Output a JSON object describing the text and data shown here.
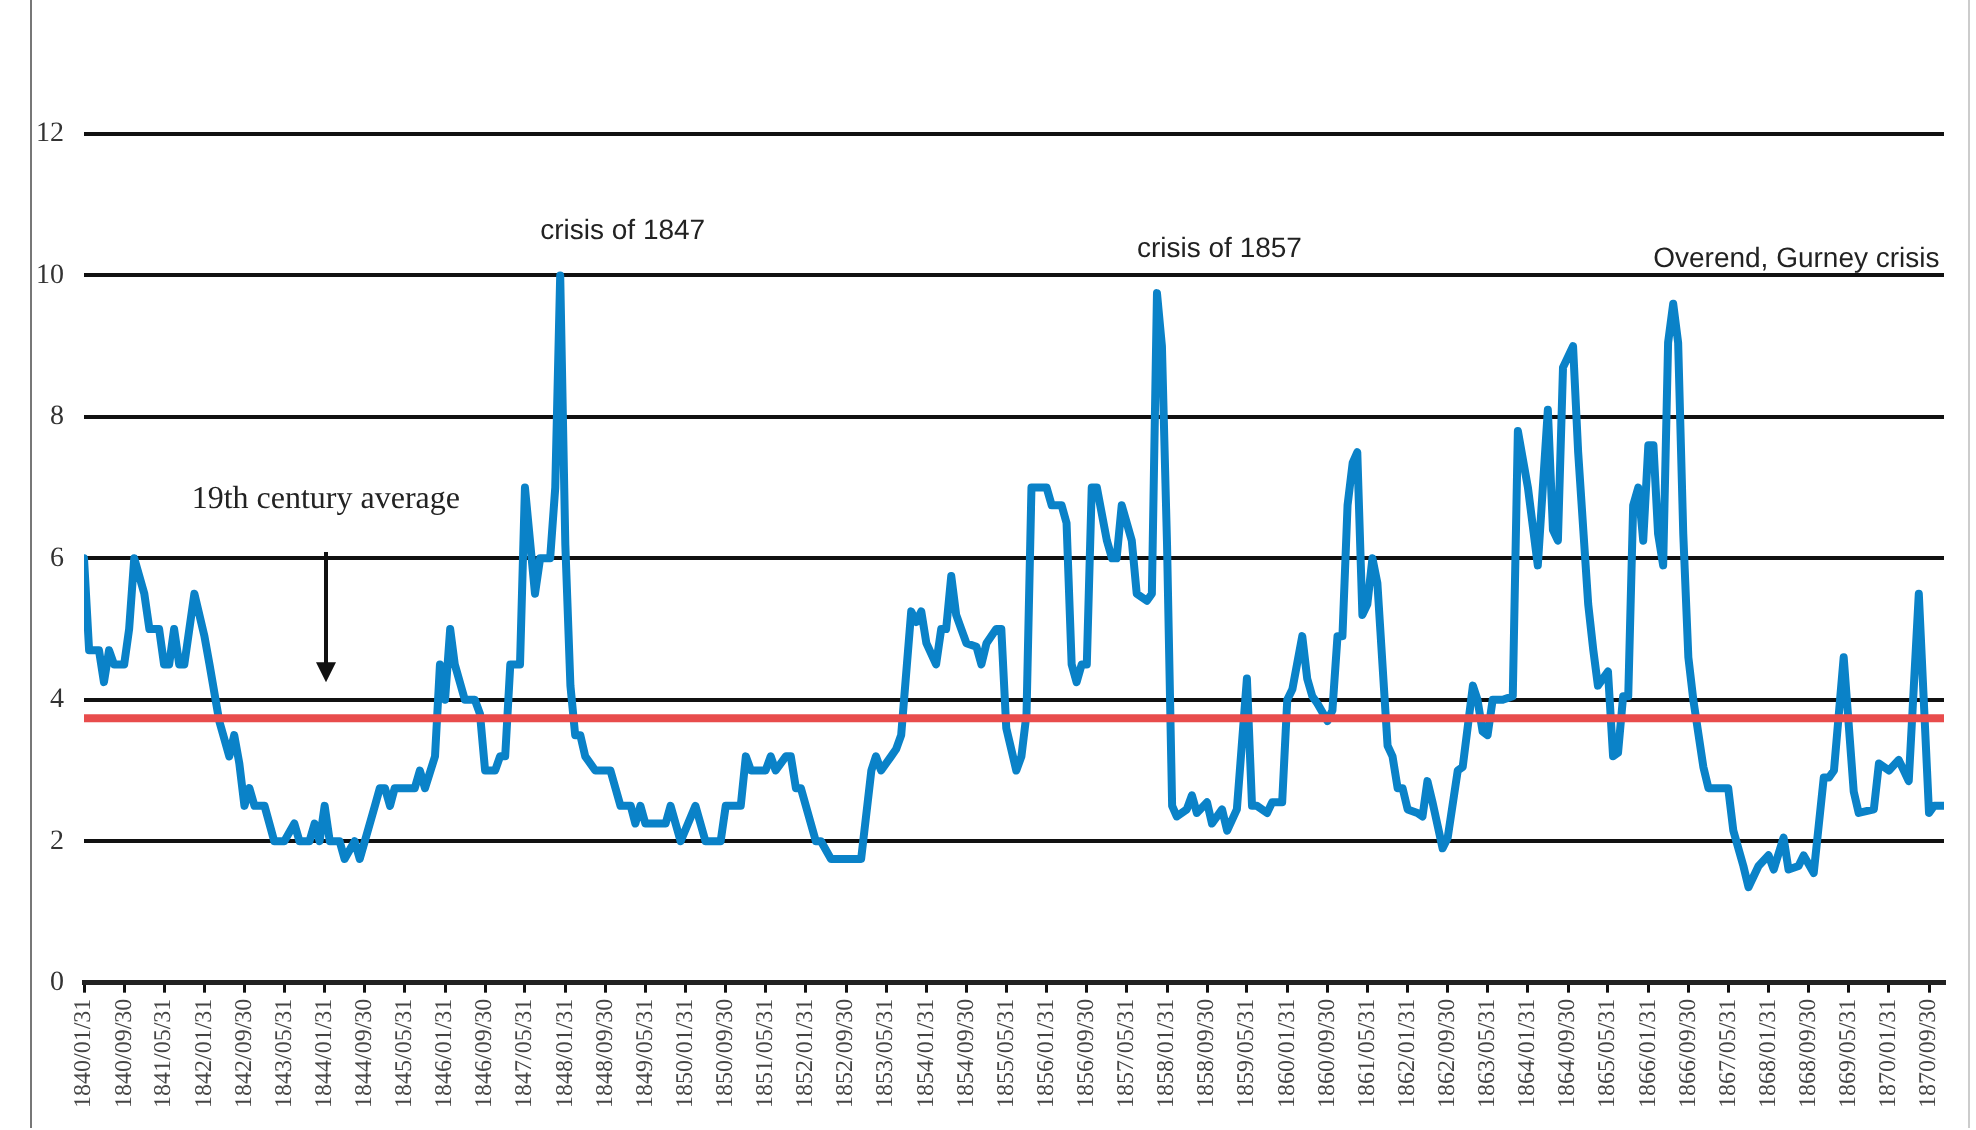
{
  "chart_data": {
    "type": "line",
    "x": [
      "1840-01",
      "1840-02",
      "1840-04",
      "1840-05",
      "1840-06",
      "1840-07",
      "1840-09",
      "1840-10",
      "1840-11",
      "1841-01",
      "1841-02",
      "1841-04",
      "1841-05",
      "1841-06",
      "1841-07",
      "1841-08",
      "1841-09",
      "1841-11",
      "1842-01",
      "1842-02",
      "1842-04",
      "1842-06",
      "1842-07",
      "1842-08",
      "1842-09",
      "1842-10",
      "1842-11",
      "1843-01",
      "1843-03",
      "1843-05",
      "1843-07",
      "1843-08",
      "1843-10",
      "1843-11",
      "1843-12",
      "1844-01",
      "1844-02",
      "1844-04",
      "1844-05",
      "1844-07",
      "1844-08",
      "1844-11",
      "1844-12",
      "1845-01",
      "1845-02",
      "1845-03",
      "1845-07",
      "1845-08",
      "1845-09",
      "1845-11",
      "1845-12",
      "1846-01",
      "1846-02",
      "1846-03",
      "1846-05",
      "1846-07",
      "1846-08",
      "1846-09",
      "1846-11",
      "1846-12",
      "1847-01",
      "1847-02",
      "1847-04",
      "1847-05",
      "1847-07",
      "1847-08",
      "1847-10",
      "1847-11",
      "1847-12",
      "1848-01",
      "1848-02",
      "1848-03",
      "1848-04",
      "1848-05",
      "1848-07",
      "1848-10",
      "1848-12",
      "1849-02",
      "1849-03",
      "1849-04",
      "1849-05",
      "1849-09",
      "1849-10",
      "1849-12",
      "1850-03",
      "1850-05",
      "1850-08",
      "1850-09",
      "1850-12",
      "1851-01",
      "1851-02",
      "1851-05",
      "1851-06",
      "1851-07",
      "1851-09",
      "1851-10",
      "1851-11",
      "1851-12",
      "1852-03",
      "1852-04",
      "1852-06",
      "1852-12",
      "1853-02",
      "1853-03",
      "1853-04",
      "1853-06",
      "1853-07",
      "1853-08",
      "1853-10",
      "1853-11",
      "1853-12",
      "1854-01",
      "1854-03",
      "1854-04",
      "1854-05",
      "1854-06",
      "1854-07",
      "1854-08",
      "1854-09",
      "1854-11",
      "1854-12",
      "1855-01",
      "1855-03",
      "1855-04",
      "1855-05",
      "1855-07",
      "1855-08",
      "1855-09",
      "1855-10",
      "1856-01",
      "1856-02",
      "1856-04",
      "1856-05",
      "1856-06",
      "1856-07",
      "1856-08",
      "1856-09",
      "1856-10",
      "1856-11",
      "1857-01",
      "1857-02",
      "1857-03",
      "1857-04",
      "1857-06",
      "1857-07",
      "1857-09",
      "1857-10",
      "1857-11",
      "1857-12",
      "1858-01",
      "1858-02",
      "1858-03",
      "1858-05",
      "1858-06",
      "1858-07",
      "1858-09",
      "1858-10",
      "1858-12",
      "1859-01",
      "1859-03",
      "1859-05",
      "1859-06",
      "1859-07",
      "1859-09",
      "1859-10",
      "1859-12",
      "1860-01",
      "1860-02",
      "1860-04",
      "1860-05",
      "1860-06",
      "1860-07",
      "1860-09",
      "1860-10",
      "1860-11",
      "1860-12",
      "1861-01",
      "1861-02",
      "1861-03",
      "1861-04",
      "1861-05",
      "1861-06",
      "1861-07",
      "1861-09",
      "1861-10",
      "1861-11",
      "1861-12",
      "1862-01",
      "1862-03",
      "1862-04",
      "1862-05",
      "1862-06",
      "1862-08",
      "1862-09",
      "1862-11",
      "1862-12",
      "1863-02",
      "1863-03",
      "1863-04",
      "1863-05",
      "1863-06",
      "1863-08",
      "1863-10",
      "1863-11",
      "1864-01",
      "1864-03",
      "1864-05",
      "1864-06",
      "1864-07",
      "1864-08",
      "1864-10",
      "1864-11",
      "1865-01",
      "1865-02",
      "1865-03",
      "1865-05",
      "1865-06",
      "1865-07",
      "1865-08",
      "1865-09",
      "1865-10",
      "1865-11",
      "1865-12",
      "1866-01",
      "1866-02",
      "1866-03",
      "1866-04",
      "1866-05",
      "1866-06",
      "1866-07",
      "1866-08",
      "1866-09",
      "1866-10",
      "1866-12",
      "1867-01",
      "1867-05",
      "1867-06",
      "1867-08",
      "1867-09",
      "1867-11",
      "1868-01",
      "1868-02",
      "1868-04",
      "1868-05",
      "1868-07",
      "1868-08",
      "1868-10",
      "1868-12",
      "1869-01",
      "1869-02",
      "1869-04",
      "1869-06",
      "1869-07",
      "1869-10",
      "1869-11",
      "1870-01",
      "1870-03",
      "1870-04",
      "1870-05",
      "1870-07",
      "1870-09",
      "1870-10",
      "1870-12"
    ],
    "series": [
      {
        "color": "#0a82c8",
        "values": [
          6.0,
          4.7,
          4.7,
          4.25,
          4.7,
          4.5,
          4.5,
          5.0,
          6.0,
          5.5,
          5.0,
          5.0,
          4.5,
          4.5,
          5.0,
          4.5,
          4.5,
          5.5,
          4.9,
          4.5,
          3.7,
          3.2,
          3.5,
          3.1,
          2.5,
          2.75,
          2.5,
          2.5,
          2.0,
          2.0,
          2.25,
          2.0,
          2.0,
          2.25,
          2.0,
          2.5,
          2.0,
          2.0,
          1.75,
          2.0,
          1.75,
          2.5,
          2.75,
          2.75,
          2.5,
          2.75,
          2.75,
          3.0,
          2.75,
          3.2,
          4.5,
          4.0,
          5.0,
          4.5,
          4.0,
          4.0,
          3.8,
          3.0,
          3.0,
          3.2,
          3.2,
          4.5,
          4.5,
          7.0,
          5.5,
          6.0,
          6.0,
          7.0,
          10.0,
          6.2,
          4.2,
          3.5,
          3.5,
          3.2,
          3.0,
          3.0,
          2.5,
          2.5,
          2.25,
          2.5,
          2.25,
          2.25,
          2.5,
          2.0,
          2.5,
          2.0,
          2.0,
          2.5,
          2.5,
          3.2,
          3.0,
          3.0,
          3.2,
          3.0,
          3.2,
          3.2,
          2.75,
          2.75,
          2.0,
          2.0,
          1.75,
          1.75,
          3.0,
          3.2,
          3.0,
          3.2,
          3.3,
          3.5,
          5.25,
          5.1,
          5.25,
          4.8,
          4.5,
          5.0,
          5.0,
          5.75,
          5.2,
          5.0,
          4.8,
          4.75,
          4.5,
          4.8,
          5.0,
          5.0,
          3.6,
          3.0,
          3.2,
          3.8,
          7.0,
          7.0,
          6.75,
          6.75,
          6.5,
          4.5,
          4.25,
          4.5,
          4.5,
          7.0,
          7.0,
          6.25,
          6.0,
          6.0,
          6.75,
          6.25,
          5.5,
          5.4,
          5.5,
          9.75,
          9.0,
          6.2,
          2.5,
          2.35,
          2.45,
          2.65,
          2.4,
          2.55,
          2.25,
          2.45,
          2.15,
          2.45,
          4.3,
          2.5,
          2.5,
          2.4,
          2.55,
          2.55,
          4.0,
          4.15,
          4.9,
          4.3,
          4.05,
          3.95,
          3.7,
          3.85,
          4.9,
          4.9,
          6.75,
          7.35,
          7.5,
          5.2,
          5.35,
          6.0,
          5.65,
          3.35,
          3.2,
          2.75,
          2.75,
          2.45,
          2.4,
          2.35,
          2.85,
          2.55,
          1.9,
          2.05,
          3.0,
          3.05,
          4.2,
          4.0,
          3.55,
          3.5,
          4.0,
          4.0,
          4.05,
          7.8,
          7.0,
          5.9,
          8.1,
          6.4,
          6.25,
          8.7,
          9.0,
          7.5,
          5.35,
          4.7,
          4.2,
          4.4,
          3.2,
          3.25,
          4.05,
          4.05,
          6.75,
          7.0,
          6.25,
          7.6,
          7.6,
          6.35,
          5.9,
          9.05,
          9.6,
          9.05,
          6.35,
          4.6,
          4.0,
          3.05,
          2.75,
          2.75,
          2.15,
          1.65,
          1.35,
          1.65,
          1.8,
          1.6,
          2.05,
          1.6,
          1.65,
          1.8,
          1.55,
          2.9,
          2.9,
          3.0,
          4.6,
          2.7,
          2.4,
          2.45,
          3.1,
          3.0,
          3.15,
          3.0,
          2.85,
          5.5,
          2.4,
          2.5,
          2.5
        ]
      }
    ],
    "xlim": [
      "1840-01",
      "1870-12"
    ],
    "xticks": [
      {
        "value": "1840-01",
        "label": "1840/01/31"
      },
      {
        "value": "1840-09",
        "label": "1840/09/30"
      },
      {
        "value": "1841-05",
        "label": "1841/05/31"
      },
      {
        "value": "1842-01",
        "label": "1842/01/31"
      },
      {
        "value": "1842-09",
        "label": "1842/09/30"
      },
      {
        "value": "1843-05",
        "label": "1843/05/31"
      },
      {
        "value": "1844-01",
        "label": "1844/01/31"
      },
      {
        "value": "1844-09",
        "label": "1844/09/30"
      },
      {
        "value": "1845-05",
        "label": "1845/05/31"
      },
      {
        "value": "1846-01",
        "label": "1846/01/31"
      },
      {
        "value": "1846-09",
        "label": "1846/09/30"
      },
      {
        "value": "1847-05",
        "label": "1847/05/31"
      },
      {
        "value": "1848-01",
        "label": "1848/01/31"
      },
      {
        "value": "1848-09",
        "label": "1848/09/30"
      },
      {
        "value": "1849-05",
        "label": "1849/05/31"
      },
      {
        "value": "1850-01",
        "label": "1850/01/31"
      },
      {
        "value": "1850-09",
        "label": "1850/09/30"
      },
      {
        "value": "1851-05",
        "label": "1851/05/31"
      },
      {
        "value": "1852-01",
        "label": "1852/01/31"
      },
      {
        "value": "1852-09",
        "label": "1852/09/30"
      },
      {
        "value": "1853-05",
        "label": "1853/05/31"
      },
      {
        "value": "1854-01",
        "label": "1854/01/31"
      },
      {
        "value": "1854-09",
        "label": "1854/09/30"
      },
      {
        "value": "1855-05",
        "label": "1855/05/31"
      },
      {
        "value": "1856-01",
        "label": "1856/01/31"
      },
      {
        "value": "1856-09",
        "label": "1856/09/30"
      },
      {
        "value": "1857-05",
        "label": "1857/05/31"
      },
      {
        "value": "1858-01",
        "label": "1858/01/31"
      },
      {
        "value": "1858-09",
        "label": "1858/09/30"
      },
      {
        "value": "1859-05",
        "label": "1859/05/31"
      },
      {
        "value": "1860-01",
        "label": "1860/01/31"
      },
      {
        "value": "1860-09",
        "label": "1860/09/30"
      },
      {
        "value": "1861-05",
        "label": "1861/05/31"
      },
      {
        "value": "1862-01",
        "label": "1862/01/31"
      },
      {
        "value": "1862-09",
        "label": "1862/09/30"
      },
      {
        "value": "1863-05",
        "label": "1863/05/31"
      },
      {
        "value": "1864-01",
        "label": "1864/01/31"
      },
      {
        "value": "1864-09",
        "label": "1864/09/30"
      },
      {
        "value": "1865-05",
        "label": "1865/05/31"
      },
      {
        "value": "1866-01",
        "label": "1866/01/31"
      },
      {
        "value": "1866-09",
        "label": "1866/09/30"
      },
      {
        "value": "1867-05",
        "label": "1867/05/31"
      },
      {
        "value": "1868-01",
        "label": "1868/01/31"
      },
      {
        "value": "1868-09",
        "label": "1868/09/30"
      },
      {
        "value": "1869-05",
        "label": "1869/05/31"
      },
      {
        "value": "1870-01",
        "label": "1870/01/31"
      },
      {
        "value": "1870-09",
        "label": "1870/09/30"
      }
    ],
    "ylim": [
      0,
      12
    ],
    "yticks": [
      0,
      2,
      4,
      6,
      8,
      10,
      12
    ],
    "grid": "y",
    "marker": "none",
    "line_style": "solid",
    "ref_lines": [
      {
        "axis": "y",
        "value": 3.74,
        "color": "#e84c4c"
      }
    ],
    "annotations": [
      "19th century average",
      {
        "text": "crisis of 1847",
        "x": "1847-12",
        "y": 10.0
      },
      {
        "text": "crisis of 1857",
        "x": "1857-11",
        "y": 9.75
      },
      {
        "text": "Overend, Gurney crisis",
        "x": "1866-06",
        "y": 9.6
      }
    ]
  }
}
